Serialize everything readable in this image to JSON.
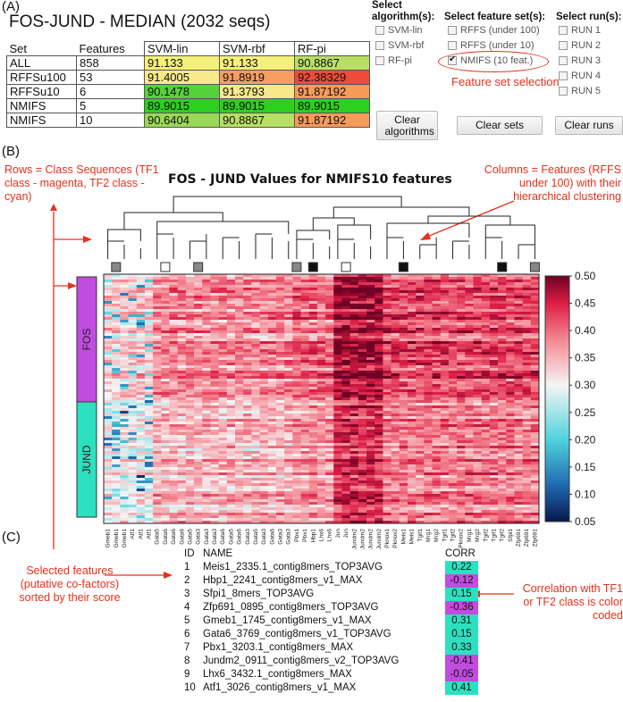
{
  "panel_a": {
    "letter": "(A)",
    "title": "FOS-JUND - MEDIAN (2032 seqs)",
    "table": {
      "headers": [
        "Set",
        "Features",
        "SVM-lin",
        "SVM-rbf",
        "RF-pi"
      ],
      "rows": [
        {
          "set": "ALL",
          "features": "858",
          "cells": [
            {
              "v": "91.133",
              "c": "#f4f07a"
            },
            {
              "v": "91.133",
              "c": "#f4f07a"
            },
            {
              "v": "90.8867",
              "c": "#b8df63"
            }
          ]
        },
        {
          "set": "RFFSu100",
          "features": "53",
          "cells": [
            {
              "v": "91.4005",
              "c": "#f8e98a"
            },
            {
              "v": "91.8919",
              "c": "#f99d5e"
            },
            {
              "v": "92.38329",
              "c": "#f04b36"
            }
          ]
        },
        {
          "set": "RFFSu10",
          "features": "6",
          "cells": [
            {
              "v": "90.1478",
              "c": "#55d23a"
            },
            {
              "v": "91.3793",
              "c": "#f6e88c"
            },
            {
              "v": "91.87192",
              "c": "#f79a5a"
            }
          ]
        },
        {
          "set": "NMIFS",
          "features": "5",
          "cells": [
            {
              "v": "89.9015",
              "c": "#2bd11e"
            },
            {
              "v": "89.9015",
              "c": "#2bd11e"
            },
            {
              "v": "89.9015",
              "c": "#2bd11e"
            }
          ]
        },
        {
          "set": "NMIFS",
          "features": "10",
          "cells": [
            {
              "v": "90.6404",
              "c": "#9ad955"
            },
            {
              "v": "90.8867",
              "c": "#b8df63"
            },
            {
              "v": "91.87192",
              "c": "#f79a5a"
            }
          ]
        }
      ]
    },
    "algorithms": {
      "header": "Select algorithm(s):",
      "options": [
        {
          "label": "SVM-lin",
          "checked": false
        },
        {
          "label": "SVM-rbf",
          "checked": false
        },
        {
          "label": "RF-pi",
          "checked": false
        }
      ],
      "clear": "Clear algorithms"
    },
    "feature_sets": {
      "header": "Select feature set(s):",
      "options": [
        {
          "label": "RFFS (under 100)",
          "checked": false
        },
        {
          "label": "RFFS (under 10)",
          "checked": false
        },
        {
          "label": "NMIFS (10 feat.)",
          "checked": true
        }
      ],
      "clear": "Clear sets",
      "annotation": "Feature set selection"
    },
    "runs": {
      "header": "Select run(s):",
      "options": [
        {
          "label": "RUN 1",
          "checked": false
        },
        {
          "label": "RUN 2",
          "checked": false
        },
        {
          "label": "RUN 3",
          "checked": false
        },
        {
          "label": "RUN 4",
          "checked": false
        },
        {
          "label": "RUN 5",
          "checked": false
        }
      ],
      "clear": "Clear runs"
    }
  },
  "panel_b": {
    "letter": "(B)",
    "title": "FOS - JUND Values for NMIFS10 features",
    "note_rows": "Rows = Class Sequences (TF1 class - magenta, TF2 class - cyan)",
    "note_cols": "Columns = Features (RFFS under 100) with their hierarchical clustering",
    "classes": [
      {
        "label": "FOS",
        "color": "#c14ce0"
      },
      {
        "label": "JUND",
        "color": "#2de0c0"
      }
    ],
    "colorbar_ticks": [
      "0.50",
      "0.45",
      "0.40",
      "0.35",
      "0.30",
      "0.25",
      "0.20",
      "0.15",
      "0.10",
      "0.05"
    ],
    "column_labels": [
      "Gmeb1",
      "Gmeb1",
      "Gmeb1",
      "Atf1",
      "Atf1",
      "Atf1",
      "Gata5",
      "Gata6",
      "Gata6",
      "Gata6",
      "Gata5",
      "Gata3",
      "Gata3",
      "Gata3",
      "Gata6",
      "Gata5",
      "Gata6",
      "Gata3",
      "Gata5",
      "Gata3",
      "Gata6",
      "Gata3",
      "Gata3",
      "Pbx1",
      "Pbx1",
      "Hbp1",
      "Lhx6",
      "Lhx6",
      "Jun",
      "Jun",
      "Jundm2",
      "Jundm2",
      "Jundm2",
      "Jundm2",
      "Pknox1",
      "Pknox2",
      "Meis1",
      "Meis1",
      "Tgif1",
      "Mrg1",
      "Mrg2",
      "Tgif1",
      "Tgif2",
      "Pknox2",
      "Mrg1",
      "Mrg2",
      "Tgif2",
      "Tgif1",
      "Tgif2",
      "Sfpi1",
      "Zfp691",
      "Zfp691",
      "Zfp691"
    ],
    "selected_markers": [
      "gray",
      "white",
      "gray",
      "gray",
      "black",
      "white",
      "black",
      "black",
      "gray"
    ]
  },
  "panel_c": {
    "letter": "(C)",
    "headers": {
      "id": "ID",
      "name": "NAME",
      "corr": "CORR"
    },
    "note_left": "Selected features (putative co-factors) sorted by their score",
    "note_right": "Correlation with TF1 or TF2 class is color coded",
    "features": [
      {
        "id": "1",
        "name": "Meis1_2335.1_contig8mers_TOP3AVG",
        "corr": "0.22",
        "color": "#2de0c0"
      },
      {
        "id": "2",
        "name": "Hbp1_2241_contig8mers_v1_MAX",
        "corr": "-0.12",
        "color": "#c14ce0"
      },
      {
        "id": "3",
        "name": "Sfpi1_8mers_TOP3AVG",
        "corr": "0.15",
        "color": "#2de0c0"
      },
      {
        "id": "4",
        "name": "Zfp691_0895_contig8mers_TOP3AVG",
        "corr": "-0.36",
        "color": "#c14ce0"
      },
      {
        "id": "5",
        "name": "Gmeb1_1745_contig8mers_v1_MAX",
        "corr": "0.31",
        "color": "#2de0c0"
      },
      {
        "id": "6",
        "name": "Gata6_3769_contig8mers_v1_TOP3AVG",
        "corr": "0.15",
        "color": "#2de0c0"
      },
      {
        "id": "7",
        "name": "Pbx1_3203.1_contig8mers_MAX",
        "corr": "0.33",
        "color": "#2de0c0"
      },
      {
        "id": "8",
        "name": "Jundm2_0911_contig8mers_v2_TOP3AVG",
        "corr": "-0.41",
        "color": "#c14ce0"
      },
      {
        "id": "9",
        "name": "Lhx6_3432.1_contig8mers_MAX",
        "corr": "-0.05",
        "color": "#c14ce0"
      },
      {
        "id": "10",
        "name": "Atf1_3026_contig8mers_v1_MAX",
        "corr": "0.41",
        "color": "#2de0c0"
      }
    ]
  }
}
